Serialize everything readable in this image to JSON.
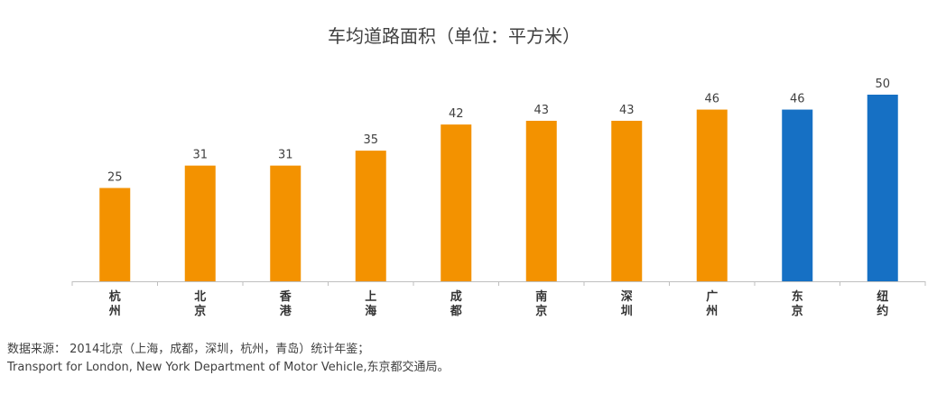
{
  "chart_data": {
    "type": "bar",
    "title": "车均道路面积（单位：平方米）",
    "xlabel": "",
    "ylabel": "",
    "ylim": [
      0,
      50
    ],
    "grid": false,
    "categories": [
      "杭州",
      "北京",
      "香港",
      "上海",
      "成都",
      "南京",
      "深圳",
      "广州",
      "东京",
      "纽约"
    ],
    "values": [
      25,
      31,
      31,
      35,
      42,
      43,
      43,
      46,
      46,
      50
    ],
    "bar_colors": [
      "#F39200",
      "#F39200",
      "#F39200",
      "#F39200",
      "#F39200",
      "#F39200",
      "#F39200",
      "#F39200",
      "#1670C4",
      "#1670C4"
    ]
  },
  "source": {
    "line1": "数据来源： 2014北京（上海，成都，深圳，杭州，青岛）统计年鉴；",
    "line2": "Transport for London, New York Department of Motor Vehicle,东京都交通局。"
  },
  "colors": {
    "orange": "#F39200",
    "blue": "#1670C4",
    "axis": "#bfbfbf"
  }
}
